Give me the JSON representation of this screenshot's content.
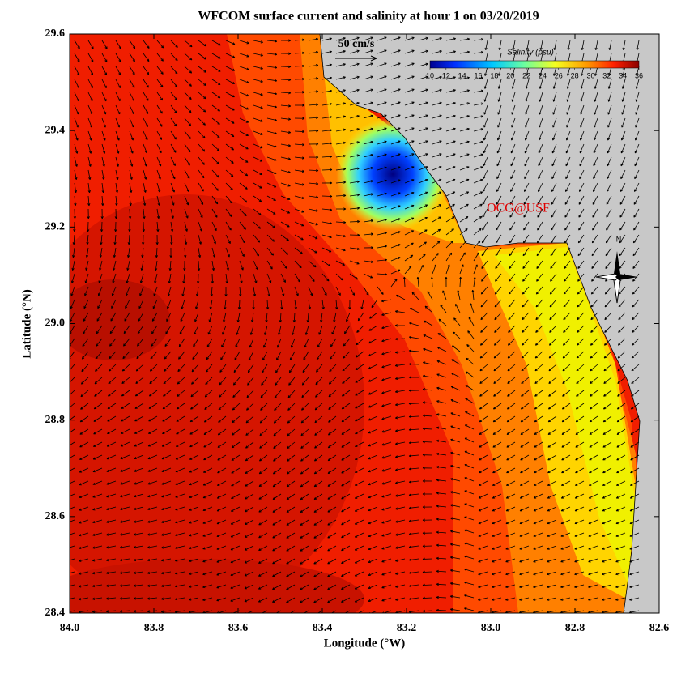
{
  "title": "WFCOM surface current and salinity at hour 1 on 03/20/2019",
  "x_axis": {
    "label": "Longitude (°W)",
    "lim": [
      84.0,
      82.6
    ],
    "ticks": [
      {
        "value": 84.0,
        "label": "84.0"
      },
      {
        "value": 83.8,
        "label": "83.8"
      },
      {
        "value": 83.6,
        "label": "83.6"
      },
      {
        "value": 83.4,
        "label": "83.4"
      },
      {
        "value": 83.2,
        "label": "83.2"
      },
      {
        "value": 83.0,
        "label": "83.0"
      },
      {
        "value": 82.8,
        "label": "82.8"
      },
      {
        "value": 82.6,
        "label": "82.6"
      }
    ]
  },
  "y_axis": {
    "label": "Latitude (°N)",
    "lim": [
      28.4,
      29.6
    ],
    "ticks": [
      {
        "value": 28.4,
        "label": "28.4"
      },
      {
        "value": 28.6,
        "label": "28.6"
      },
      {
        "value": 28.8,
        "label": "28.8"
      },
      {
        "value": 29.0,
        "label": "29.0"
      },
      {
        "value": 29.2,
        "label": "29.2"
      },
      {
        "value": 29.4,
        "label": "29.4"
      },
      {
        "value": 29.6,
        "label": "29.6"
      }
    ]
  },
  "scale_arrow": "50 cm/s",
  "colorbar": {
    "label": "Salinity (psu)",
    "lim": [
      10,
      36
    ],
    "ticks": [
      10,
      12,
      14,
      16,
      18,
      20,
      22,
      24,
      26,
      28,
      30,
      32,
      34,
      36
    ]
  },
  "credit": "OCG@USF",
  "north": "N"
}
